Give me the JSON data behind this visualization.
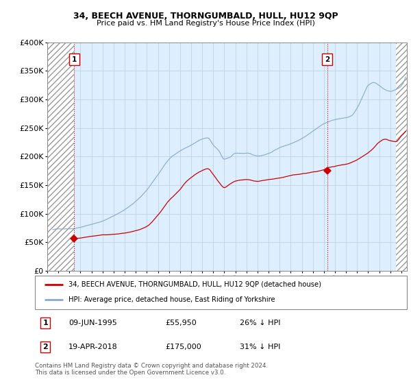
{
  "title": "34, BEECH AVENUE, THORNGUMBALD, HULL, HU12 9QP",
  "subtitle": "Price paid vs. HM Land Registry's House Price Index (HPI)",
  "legend_line1": "34, BEECH AVENUE, THORNGUMBALD, HULL, HU12 9QP (detached house)",
  "legend_line2": "HPI: Average price, detached house, East Riding of Yorkshire",
  "footer": "Contains HM Land Registry data © Crown copyright and database right 2024.\nThis data is licensed under the Open Government Licence v3.0.",
  "point1_date": "09-JUN-1995",
  "point1_price": "£55,950",
  "point1_pct": "26% ↓ HPI",
  "point2_date": "19-APR-2018",
  "point2_price": "£175,000",
  "point2_pct": "31% ↓ HPI",
  "ylim": [
    0,
    400000
  ],
  "yticks": [
    0,
    50000,
    100000,
    150000,
    200000,
    250000,
    300000,
    350000,
    400000
  ],
  "ytick_labels": [
    "£0",
    "£50K",
    "£100K",
    "£150K",
    "£200K",
    "£250K",
    "£300K",
    "£350K",
    "£400K"
  ],
  "xmin": 1993.0,
  "xmax": 2025.5,
  "red_color": "#cc0000",
  "blue_color": "#88aacc",
  "hatch_color": "#aaaaaa",
  "grid_color": "#bbccdd",
  "bg_color": "#ddeeff",
  "point1_x": 1995.44,
  "point1_y": 55950,
  "point2_x": 2018.29,
  "point2_y": 175000,
  "hatch_left_end": 1995.44,
  "hatch_right_start": 2024.5
}
